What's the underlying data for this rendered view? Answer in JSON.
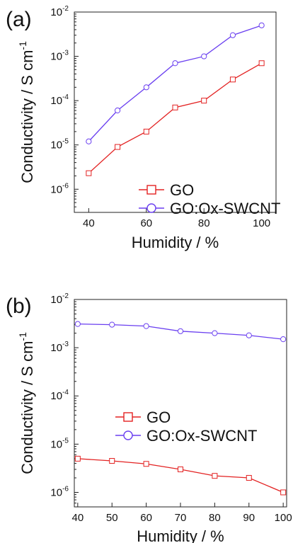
{
  "chart_data": [
    {
      "type": "line",
      "panel_label": "(a)",
      "xlabel": "Humidity / %",
      "ylabel": "Conductivity / S cm",
      "ylabel_sup": "-1",
      "y_scale": "log",
      "xlim": [
        35,
        105
      ],
      "ylim": [
        3e-07,
        0.01
      ],
      "x_ticks": [
        40,
        60,
        80,
        100
      ],
      "y_ticks": [
        {
          "value": 1e-06,
          "base": "10",
          "exp": "-6"
        },
        {
          "value": 1e-05,
          "base": "10",
          "exp": "-5"
        },
        {
          "value": 0.0001,
          "base": "10",
          "exp": "-4"
        },
        {
          "value": 0.001,
          "base": "10",
          "exp": "-3"
        },
        {
          "value": 0.01,
          "base": "10",
          "exp": "-2"
        }
      ],
      "legend_position": "bottom-right",
      "series": [
        {
          "name": "GO",
          "marker": "square",
          "color": "#e32222",
          "x": [
            40,
            50,
            60,
            70,
            80,
            90,
            100
          ],
          "y": [
            2.3e-06,
            9e-06,
            2e-05,
            7e-05,
            0.0001,
            0.0003,
            0.0007
          ]
        },
        {
          "name": "GO:Ox-SWCNT",
          "marker": "circle",
          "color": "#6a3ff0",
          "x": [
            40,
            50,
            60,
            70,
            80,
            90,
            100
          ],
          "y": [
            1.2e-05,
            6e-05,
            0.0002,
            0.0007,
            0.001,
            0.003,
            0.005
          ]
        }
      ]
    },
    {
      "type": "line",
      "panel_label": "(b)",
      "xlabel": "Humidity / %",
      "ylabel": "Conductivity / S cm",
      "ylabel_sup": "-1",
      "y_scale": "log",
      "xlim": [
        39,
        101
      ],
      "ylim": [
        5e-07,
        0.01
      ],
      "x_ticks": [
        40,
        50,
        60,
        70,
        80,
        90,
        100
      ],
      "y_ticks": [
        {
          "value": 1e-06,
          "base": "10",
          "exp": "-6"
        },
        {
          "value": 1e-05,
          "base": "10",
          "exp": "-5"
        },
        {
          "value": 0.0001,
          "base": "10",
          "exp": "-4"
        },
        {
          "value": 0.001,
          "base": "10",
          "exp": "-3"
        },
        {
          "value": 0.01,
          "base": "10",
          "exp": "-2"
        }
      ],
      "legend_position": "center-left",
      "series": [
        {
          "name": "GO",
          "marker": "square",
          "color": "#e32222",
          "x": [
            40,
            50,
            60,
            70,
            80,
            90,
            100
          ],
          "y": [
            5e-06,
            4.5e-06,
            3.9e-06,
            3e-06,
            2.2e-06,
            2e-06,
            1e-06
          ]
        },
        {
          "name": "GO:Ox-SWCNT",
          "marker": "circle",
          "color": "#6a3ff0",
          "x": [
            40,
            50,
            60,
            70,
            80,
            90,
            100
          ],
          "y": [
            0.0031,
            0.003,
            0.0028,
            0.0022,
            0.002,
            0.0018,
            0.0015
          ]
        }
      ]
    }
  ]
}
